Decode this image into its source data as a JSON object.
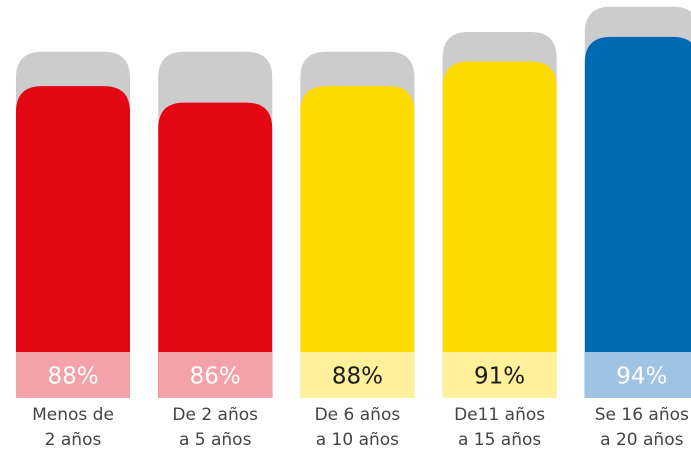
{
  "chart_data": {
    "type": "bar",
    "categories": [
      [
        "Menos de",
        "2 años"
      ],
      [
        "De 2 años",
        "a 5 años"
      ],
      [
        "De 6 años",
        "a 10 años"
      ],
      [
        "De11 años",
        "a 15 años"
      ],
      [
        "Se 16 años",
        "a 20 años"
      ]
    ],
    "series": [
      {
        "values": [
          88,
          86,
          88,
          91,
          94
        ],
        "value_labels": [
          "88%",
          "86%",
          "88%",
          "91%",
          "94%"
        ],
        "colors": [
          "#e30613",
          "#e30613",
          "#ffdc00",
          "#ffdc00",
          "#0069b4"
        ],
        "label_colors": [
          "#f4a1a9",
          "#f4a1a9",
          "#fff19c",
          "#fff19c",
          "#9fc3e3"
        ],
        "label_text_colors": [
          "#ffffff",
          "#ffffff",
          "#1a1a1a",
          "#1a1a1a",
          "#ffffff"
        ]
      },
      {
        "color": "#cccccc",
        "values": [
          92.2,
          92.2,
          92.2,
          94.6,
          97.7
        ]
      }
    ],
    "ylim": [
      50,
      98.5
    ]
  }
}
